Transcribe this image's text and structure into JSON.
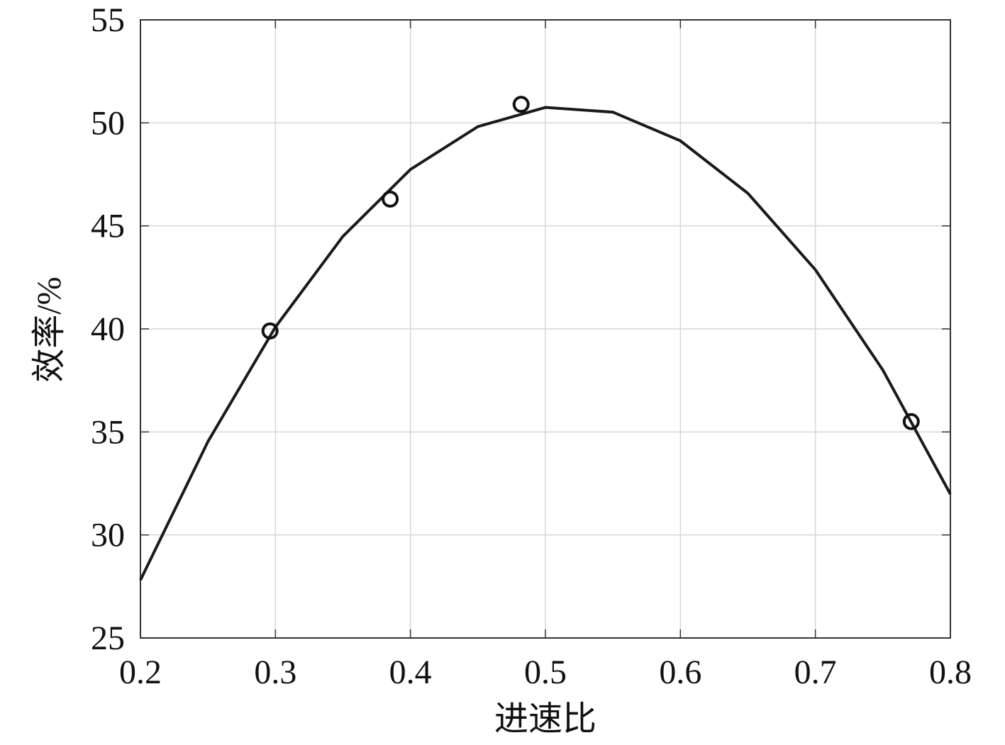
{
  "chart_data": {
    "type": "scatter",
    "xlabel": "进速比",
    "ylabel": "效率/%",
    "xlim": [
      0.2,
      0.8
    ],
    "xticks": [
      0.2,
      0.3,
      0.4,
      0.5,
      0.6,
      0.7,
      0.8
    ],
    "ylim": [
      25,
      55
    ],
    "yticks": [
      25,
      30,
      35,
      40,
      45,
      50,
      55
    ],
    "grid": true,
    "series": [
      {
        "type": "line",
        "color": "#1a1a1a",
        "x": [
          0.2,
          0.25,
          0.3,
          0.35,
          0.4,
          0.45,
          0.5,
          0.55,
          0.6,
          0.65,
          0.7,
          0.75,
          0.8
        ],
        "values": [
          27.81,
          34.53,
          40.09,
          44.49,
          47.74,
          49.82,
          50.75,
          50.52,
          49.13,
          46.58,
          42.87,
          38.0,
          31.98
        ]
      },
      {
        "type": "scatter",
        "color": "#111111",
        "x": [
          0.296,
          0.385,
          0.482,
          0.771
        ],
        "values": [
          39.9,
          46.3,
          50.9,
          35.5
        ]
      }
    ]
  }
}
